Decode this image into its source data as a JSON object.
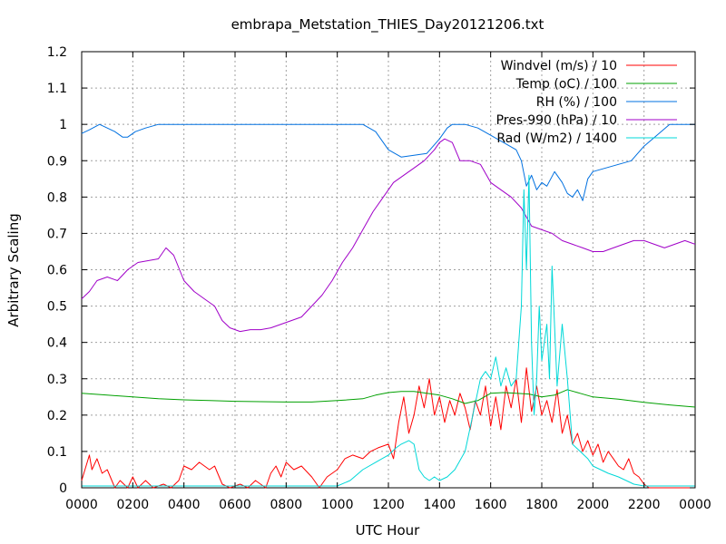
{
  "chart_data": {
    "type": "line",
    "title": "embrapa_Metstation_THIES_Day20121206.txt",
    "xlabel": "UTC Hour",
    "ylabel": "Arbitrary Scaling",
    "xlim": [
      0,
      24
    ],
    "ylim": [
      0,
      1.2
    ],
    "x_ticks": [
      "0000",
      "0200",
      "0400",
      "0600",
      "0800",
      "1000",
      "1200",
      "1400",
      "1600",
      "1800",
      "2000",
      "2200",
      "0000"
    ],
    "y_ticks": [
      "0",
      "0.1",
      "0.2",
      "0.3",
      "0.4",
      "0.5",
      "0.6",
      "0.7",
      "0.8",
      "0.9",
      "1",
      "1.1",
      "1.2"
    ],
    "grid": true,
    "legend_position": "top-right",
    "series": [
      {
        "name": "Windvel (m/s) / 10",
        "color": "#ff0000",
        "x": [
          0,
          0.3,
          0.4,
          0.6,
          0.8,
          1.0,
          1.3,
          1.5,
          1.8,
          2.0,
          2.2,
          2.5,
          2.8,
          3.2,
          3.5,
          3.8,
          4.0,
          4.3,
          4.6,
          5.0,
          5.2,
          5.5,
          5.8,
          6.2,
          6.5,
          6.8,
          7.2,
          7.4,
          7.6,
          7.8,
          8.0,
          8.3,
          8.6,
          9.0,
          9.3,
          9.6,
          10.0,
          10.3,
          10.6,
          11.0,
          11.3,
          11.6,
          12.0,
          12.2,
          12.4,
          12.6,
          12.8,
          13.0,
          13.2,
          13.4,
          13.6,
          13.8,
          14.0,
          14.2,
          14.4,
          14.6,
          14.8,
          15.0,
          15.2,
          15.4,
          15.6,
          15.8,
          16.0,
          16.2,
          16.4,
          16.6,
          16.8,
          17.0,
          17.2,
          17.4,
          17.6,
          17.8,
          18.0,
          18.2,
          18.4,
          18.6,
          18.8,
          19.0,
          19.2,
          19.4,
          19.6,
          19.8,
          20.0,
          20.2,
          20.4,
          20.6,
          20.8,
          21.0,
          21.2,
          21.4,
          21.6,
          21.8,
          22.0,
          22.2,
          22.4,
          23.0,
          24.0
        ],
        "values": [
          0.02,
          0.09,
          0.05,
          0.08,
          0.04,
          0.05,
          0.0,
          0.02,
          0.0,
          0.03,
          0.0,
          0.02,
          0.0,
          0.01,
          0.0,
          0.02,
          0.06,
          0.05,
          0.07,
          0.05,
          0.06,
          0.01,
          0.0,
          0.01,
          0.0,
          0.02,
          0.0,
          0.04,
          0.06,
          0.03,
          0.07,
          0.05,
          0.06,
          0.03,
          0.0,
          0.03,
          0.05,
          0.08,
          0.09,
          0.08,
          0.1,
          0.11,
          0.12,
          0.08,
          0.18,
          0.25,
          0.15,
          0.2,
          0.28,
          0.22,
          0.3,
          0.2,
          0.25,
          0.18,
          0.24,
          0.2,
          0.26,
          0.22,
          0.16,
          0.24,
          0.2,
          0.28,
          0.17,
          0.25,
          0.16,
          0.28,
          0.22,
          0.3,
          0.18,
          0.33,
          0.21,
          0.28,
          0.2,
          0.24,
          0.18,
          0.27,
          0.15,
          0.2,
          0.12,
          0.15,
          0.1,
          0.13,
          0.09,
          0.12,
          0.07,
          0.1,
          0.08,
          0.06,
          0.05,
          0.08,
          0.04,
          0.03,
          0.01,
          0.0,
          0.0,
          0.0,
          0.0
        ]
      },
      {
        "name": "Temp (oC) / 100",
        "color": "#00a000",
        "x": [
          0,
          1,
          2,
          3,
          4,
          5,
          6,
          7,
          8,
          9,
          10,
          11,
          11.5,
          12,
          12.5,
          13,
          13.5,
          14,
          14.5,
          15,
          15.5,
          16,
          16.5,
          17,
          17.5,
          18,
          18.5,
          19,
          19.5,
          20,
          21,
          22,
          23,
          24
        ],
        "values": [
          0.26,
          0.255,
          0.25,
          0.245,
          0.242,
          0.24,
          0.238,
          0.237,
          0.236,
          0.236,
          0.24,
          0.245,
          0.255,
          0.262,
          0.265,
          0.265,
          0.26,
          0.255,
          0.245,
          0.232,
          0.24,
          0.26,
          0.262,
          0.26,
          0.258,
          0.25,
          0.255,
          0.27,
          0.26,
          0.25,
          0.244,
          0.235,
          0.228,
          0.222
        ]
      },
      {
        "name": "RH (%) / 100",
        "color": "#0070e0",
        "x": [
          0,
          0.3,
          0.7,
          1.0,
          1.3,
          1.6,
          1.8,
          2.1,
          2.5,
          3.0,
          4,
          5,
          6,
          7,
          8,
          9,
          10,
          11,
          11.5,
          12,
          12.5,
          13,
          13.5,
          14.0,
          14.3,
          14.5,
          15.0,
          15.5,
          16.0,
          16.5,
          17.0,
          17.2,
          17.4,
          17.6,
          17.8,
          18.0,
          18.2,
          18.5,
          18.8,
          19.0,
          19.2,
          19.4,
          19.6,
          19.8,
          20.0,
          20.5,
          21.0,
          21.5,
          22.0,
          22.5,
          23.0,
          24.0
        ],
        "values": [
          0.975,
          0.985,
          1.0,
          0.99,
          0.98,
          0.965,
          0.965,
          0.98,
          0.99,
          1.0,
          1.0,
          1.0,
          1.0,
          1.0,
          1.0,
          1.0,
          1.0,
          1.0,
          0.98,
          0.93,
          0.91,
          0.915,
          0.92,
          0.96,
          0.99,
          1.0,
          1.0,
          0.99,
          0.97,
          0.95,
          0.93,
          0.9,
          0.83,
          0.86,
          0.82,
          0.84,
          0.83,
          0.87,
          0.84,
          0.81,
          0.8,
          0.82,
          0.79,
          0.85,
          0.87,
          0.88,
          0.89,
          0.9,
          0.94,
          0.97,
          1.0,
          1.0
        ]
      },
      {
        "name": "Pres-990 (hPa) / 10",
        "color": "#a000c8",
        "x": [
          0,
          0.3,
          0.6,
          1.0,
          1.4,
          1.8,
          2.2,
          2.6,
          3.0,
          3.3,
          3.6,
          4.0,
          4.4,
          4.8,
          5.2,
          5.5,
          5.8,
          6.2,
          6.6,
          7.0,
          7.4,
          7.8,
          8.2,
          8.6,
          9.0,
          9.4,
          9.8,
          10.2,
          10.6,
          11.0,
          11.4,
          11.8,
          12.2,
          12.6,
          13.0,
          13.4,
          13.8,
          14.0,
          14.2,
          14.5,
          14.8,
          15.2,
          15.6,
          16.0,
          16.4,
          16.8,
          17.2,
          17.6,
          18.0,
          18.4,
          18.8,
          19.2,
          19.6,
          20.0,
          20.4,
          20.8,
          21.2,
          21.6,
          22.0,
          22.4,
          22.8,
          23.2,
          23.6,
          24.0
        ],
        "values": [
          0.52,
          0.54,
          0.57,
          0.58,
          0.57,
          0.6,
          0.62,
          0.625,
          0.63,
          0.66,
          0.64,
          0.57,
          0.54,
          0.52,
          0.5,
          0.46,
          0.44,
          0.43,
          0.435,
          0.435,
          0.44,
          0.45,
          0.46,
          0.47,
          0.5,
          0.53,
          0.57,
          0.62,
          0.66,
          0.71,
          0.76,
          0.8,
          0.84,
          0.86,
          0.88,
          0.9,
          0.93,
          0.95,
          0.96,
          0.95,
          0.9,
          0.9,
          0.89,
          0.84,
          0.82,
          0.8,
          0.77,
          0.72,
          0.71,
          0.7,
          0.68,
          0.67,
          0.66,
          0.65,
          0.65,
          0.66,
          0.67,
          0.68,
          0.68,
          0.67,
          0.66,
          0.67,
          0.68,
          0.67
        ]
      },
      {
        "name": "Rad (W/m2) / 1400",
        "color": "#00d8d8",
        "x": [
          0,
          10.0,
          10.5,
          11.0,
          11.5,
          12.0,
          12.3,
          12.5,
          12.8,
          13.0,
          13.2,
          13.4,
          13.6,
          13.8,
          14.0,
          14.3,
          14.6,
          15.0,
          15.3,
          15.6,
          15.8,
          16.0,
          16.2,
          16.4,
          16.6,
          16.8,
          17.0,
          17.2,
          17.3,
          17.4,
          17.5,
          17.6,
          17.7,
          17.8,
          17.9,
          18.0,
          18.2,
          18.3,
          18.4,
          18.6,
          18.8,
          19.0,
          19.2,
          19.5,
          19.8,
          20.0,
          20.3,
          20.6,
          21.0,
          21.3,
          21.6,
          22.0,
          22.3,
          24.0
        ],
        "values": [
          0.005,
          0.005,
          0.02,
          0.05,
          0.07,
          0.09,
          0.11,
          0.12,
          0.13,
          0.12,
          0.05,
          0.03,
          0.02,
          0.03,
          0.02,
          0.03,
          0.05,
          0.1,
          0.2,
          0.3,
          0.32,
          0.3,
          0.36,
          0.28,
          0.33,
          0.28,
          0.3,
          0.5,
          0.82,
          0.6,
          0.86,
          0.4,
          0.2,
          0.3,
          0.5,
          0.35,
          0.45,
          0.3,
          0.61,
          0.28,
          0.45,
          0.3,
          0.12,
          0.1,
          0.08,
          0.06,
          0.05,
          0.04,
          0.03,
          0.02,
          0.01,
          0.005,
          0.005,
          0.005
        ]
      }
    ]
  }
}
